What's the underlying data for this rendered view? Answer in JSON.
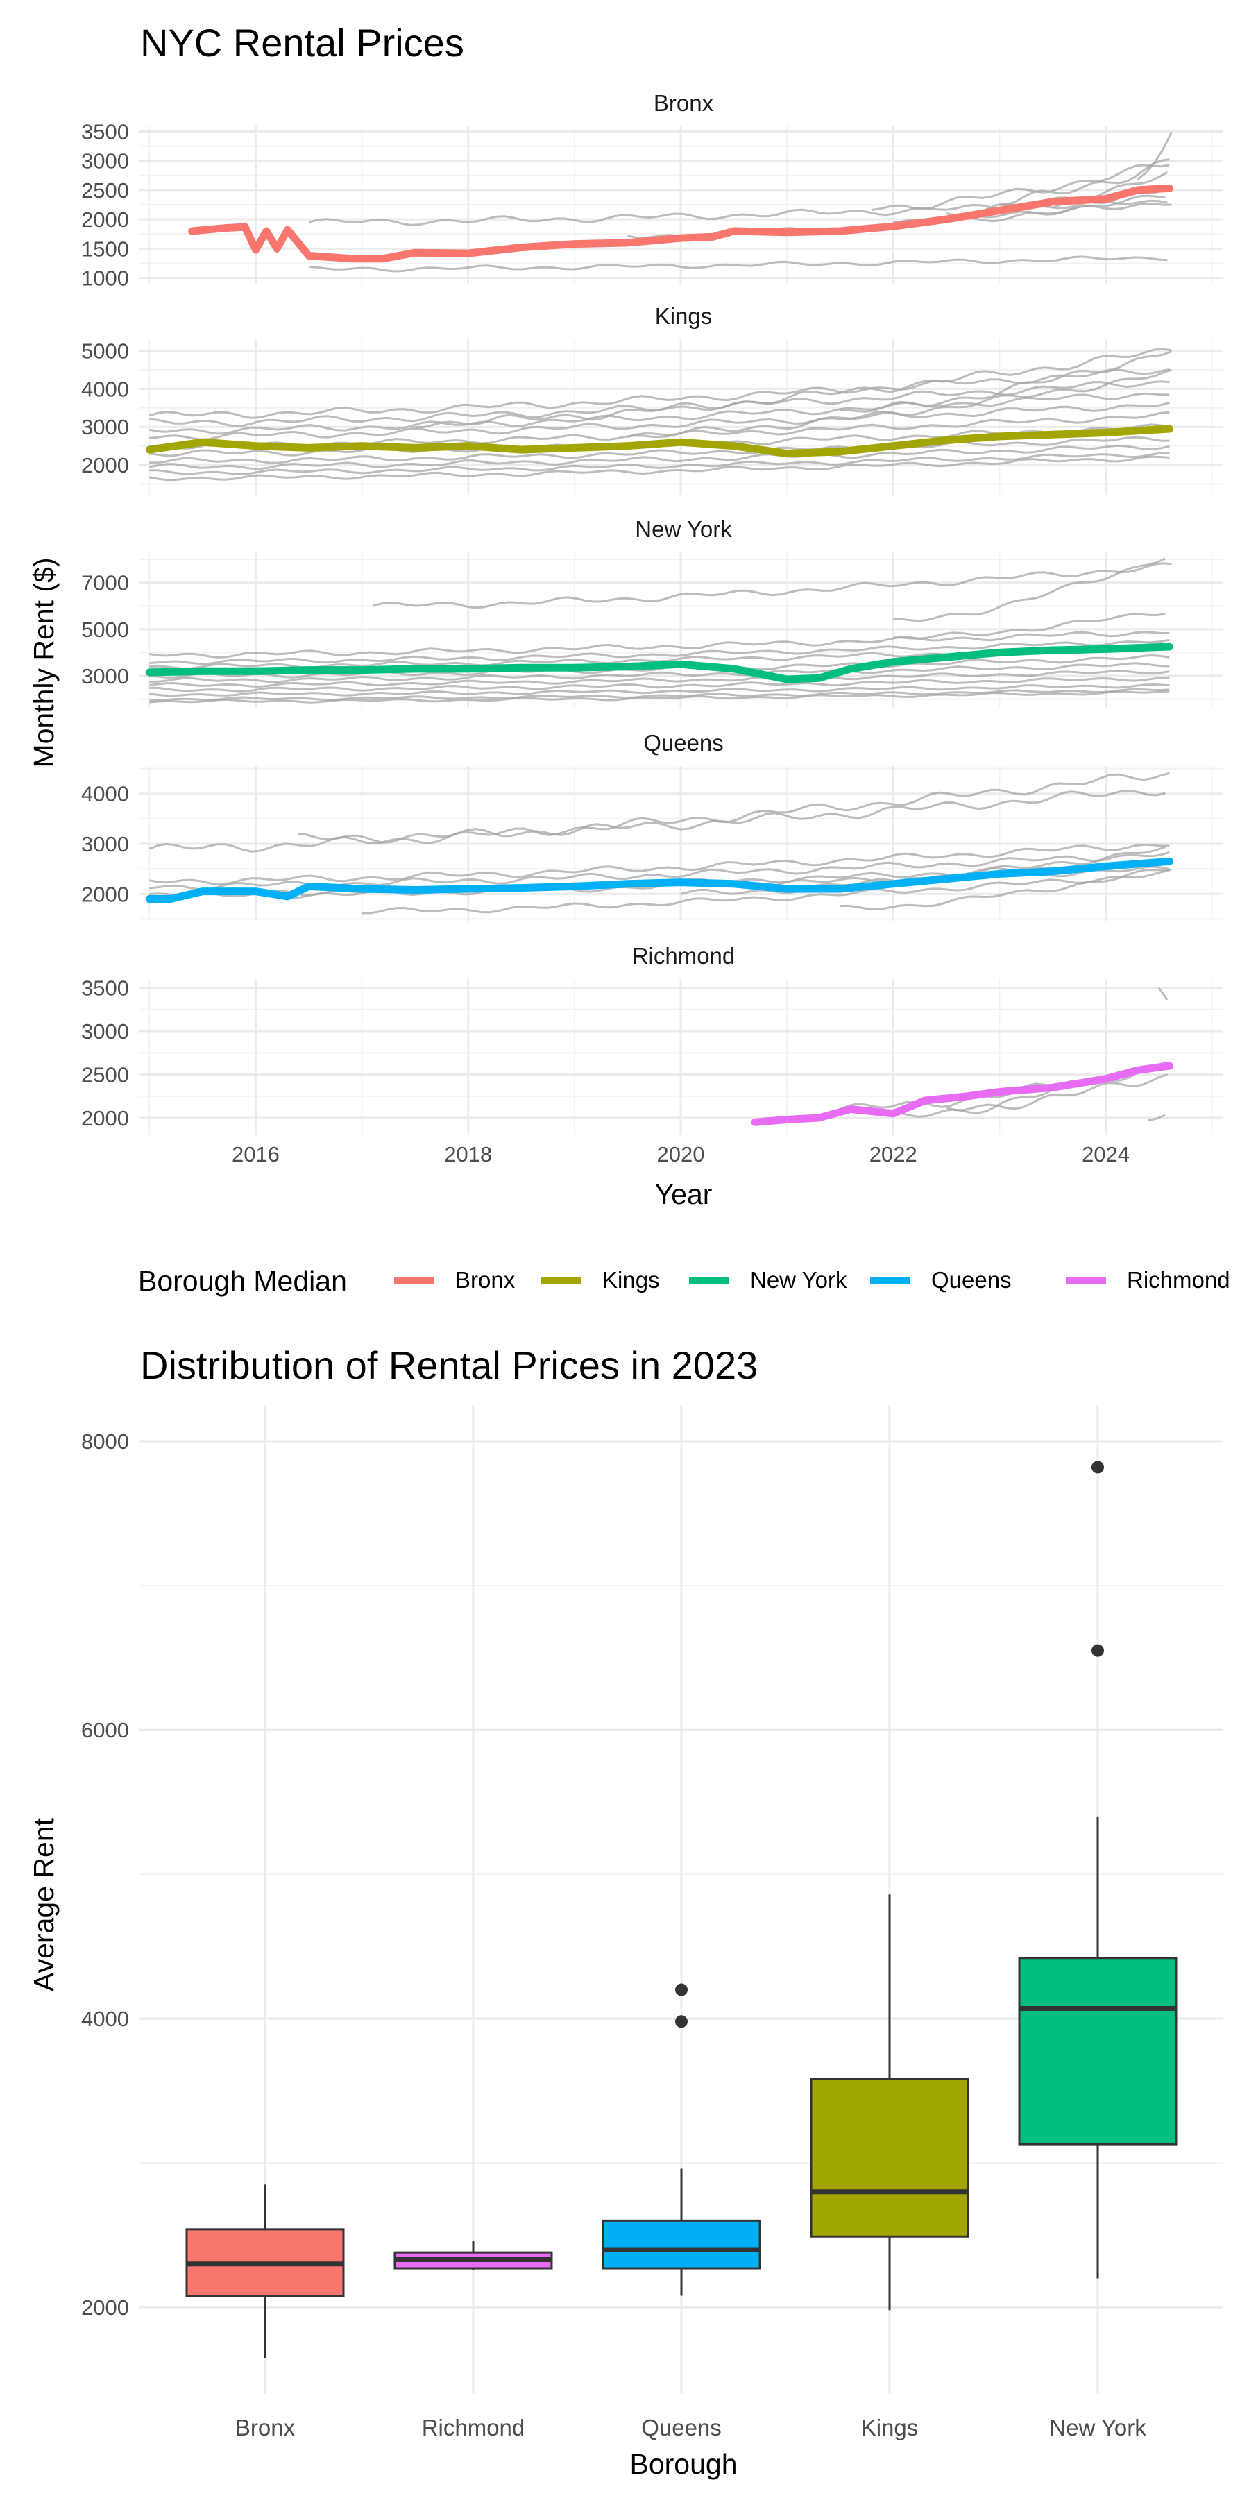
{
  "top_chart": {
    "title": "NYC Rental Prices",
    "xlabel": "Year",
    "ylabel": "Monthly Rent ($)",
    "x_ticks": [
      "2016",
      "2018",
      "2020",
      "2022",
      "2024"
    ],
    "legend": {
      "title": "Borough Median",
      "entries": [
        {
          "label": "Bronx",
          "color": "#F8766D"
        },
        {
          "label": "Kings",
          "color": "#A3A500"
        },
        {
          "label": "New York",
          "color": "#00BF7D"
        },
        {
          "label": "Queens",
          "color": "#00B0F6"
        },
        {
          "label": "Richmond",
          "color": "#E76BF3"
        }
      ]
    }
  },
  "bottom_chart": {
    "title": "Distribution of Rental Prices in 2023",
    "xlabel": "Borough",
    "ylabel": "Average Rent",
    "y_ticks": [
      "2000",
      "4000",
      "6000",
      "8000"
    ]
  },
  "chart_data": [
    {
      "type": "line",
      "title": "NYC Rental Prices",
      "xlabel": "Year",
      "ylabel": "Monthly Rent ($)",
      "xlim": [
        2014.9,
        2025.1
      ],
      "facets": [
        {
          "name": "Bronx",
          "color": "#F8766D",
          "ylim": [
            900,
            3600
          ],
          "y_ticks": [
            1000,
            1500,
            2000,
            2500,
            3000,
            3500
          ],
          "median": [
            [
              2015.4,
              1800
            ],
            [
              2015.7,
              1850
            ],
            [
              2015.9,
              1870
            ],
            [
              2016.0,
              1480
            ],
            [
              2016.1,
              1800
            ],
            [
              2016.2,
              1500
            ],
            [
              2016.3,
              1820
            ],
            [
              2016.5,
              1380
            ],
            [
              2016.9,
              1330
            ],
            [
              2017.2,
              1330
            ],
            [
              2017.5,
              1430
            ],
            [
              2018.0,
              1420
            ],
            [
              2018.5,
              1520
            ],
            [
              2019.0,
              1580
            ],
            [
              2019.5,
              1600
            ],
            [
              2020.0,
              1680
            ],
            [
              2020.3,
              1700
            ],
            [
              2020.5,
              1800
            ],
            [
              2021.0,
              1780
            ],
            [
              2021.5,
              1800
            ],
            [
              2022.0,
              1880
            ],
            [
              2022.5,
              2000
            ],
            [
              2023.0,
              2150
            ],
            [
              2023.5,
              2300
            ],
            [
              2024.0,
              2350
            ],
            [
              2024.3,
              2500
            ],
            [
              2024.6,
              2530
            ]
          ],
          "others": [
            {
              "start": 2016.5,
              "base": 1950,
              "end": 2300,
              "noise": 60
            },
            {
              "start": 2016.5,
              "base": 1150,
              "end": 1350,
              "noise": 40
            },
            {
              "start": 2019.5,
              "base": 1700,
              "end": 2300,
              "noise": 60
            },
            {
              "start": 2021.8,
              "base": 2200,
              "end": 2950,
              "noise": 80
            },
            {
              "start": 2022.0,
              "base": 1950,
              "end": 2400,
              "noise": 60
            },
            {
              "start": 2022.5,
              "base": 2100,
              "end": 2750,
              "noise": 80
            },
            {
              "start": 2023.0,
              "base": 2300,
              "end": 3000,
              "noise": 100
            },
            {
              "start": 2023.5,
              "base": 2200,
              "end": 2600,
              "noise": 80
            },
            {
              "start": 2024.3,
              "base": 2600,
              "end": 3450,
              "noise": 80
            }
          ]
        },
        {
          "name": "Kings",
          "color": "#A3A500",
          "ylim": [
            1200,
            5300
          ],
          "y_ticks": [
            2000,
            3000,
            4000,
            5000
          ],
          "median": [
            [
              2015.0,
              2400
            ],
            [
              2015.5,
              2600
            ],
            [
              2016.0,
              2500
            ],
            [
              2016.5,
              2450
            ],
            [
              2017.0,
              2500
            ],
            [
              2017.5,
              2450
            ],
            [
              2018.0,
              2500
            ],
            [
              2018.5,
              2400
            ],
            [
              2019.0,
              2450
            ],
            [
              2019.5,
              2500
            ],
            [
              2020.0,
              2600
            ],
            [
              2020.5,
              2500
            ],
            [
              2021.0,
              2300
            ],
            [
              2021.5,
              2350
            ],
            [
              2022.0,
              2500
            ],
            [
              2022.5,
              2650
            ],
            [
              2023.0,
              2750
            ],
            [
              2023.5,
              2800
            ],
            [
              2024.0,
              2850
            ],
            [
              2024.6,
              2950
            ]
          ],
          "others": [
            {
              "start": 2015.0,
              "base": 3300,
              "end": 4500,
              "noise": 100
            },
            {
              "start": 2015.0,
              "base": 3100,
              "end": 4200,
              "noise": 100
            },
            {
              "start": 2015.0,
              "base": 2900,
              "end": 3900,
              "noise": 90
            },
            {
              "start": 2015.0,
              "base": 2750,
              "end": 3600,
              "noise": 90
            },
            {
              "start": 2015.0,
              "base": 2500,
              "end": 3300,
              "noise": 80
            },
            {
              "start": 2015.0,
              "base": 2300,
              "end": 3000,
              "noise": 80
            },
            {
              "start": 2015.0,
              "base": 2100,
              "end": 2700,
              "noise": 70
            },
            {
              "start": 2015.0,
              "base": 1950,
              "end": 2500,
              "noise": 70
            },
            {
              "start": 2015.0,
              "base": 1800,
              "end": 2300,
              "noise": 60
            },
            {
              "start": 2015.0,
              "base": 1650,
              "end": 2200,
              "noise": 60
            },
            {
              "start": 2017.5,
              "base": 3100,
              "end": 5000,
              "noise": 120
            },
            {
              "start": 2019.5,
              "base": 2800,
              "end": 4400,
              "noise": 100
            },
            {
              "start": 2021.5,
              "base": 3400,
              "end": 5000,
              "noise": 120
            }
          ]
        },
        {
          "name": "New York",
          "color": "#00BF7D",
          "ylim": [
            1600,
            8300
          ],
          "y_ticks": [
            3000,
            5000,
            7000
          ],
          "median": [
            [
              2015.0,
              3150
            ],
            [
              2015.5,
              3200
            ],
            [
              2016.0,
              3200
            ],
            [
              2016.5,
              3250
            ],
            [
              2017.0,
              3250
            ],
            [
              2017.5,
              3300
            ],
            [
              2018.0,
              3300
            ],
            [
              2018.5,
              3350
            ],
            [
              2019.0,
              3350
            ],
            [
              2019.5,
              3400
            ],
            [
              2020.0,
              3500
            ],
            [
              2020.5,
              3300
            ],
            [
              2021.0,
              2850
            ],
            [
              2021.3,
              2900
            ],
            [
              2021.6,
              3300
            ],
            [
              2022.0,
              3600
            ],
            [
              2022.5,
              3800
            ],
            [
              2023.0,
              4000
            ],
            [
              2023.5,
              4100
            ],
            [
              2024.0,
              4150
            ],
            [
              2024.6,
              4250
            ]
          ],
          "others": [
            {
              "start": 2017.1,
              "base": 6000,
              "end": 7700,
              "noise": 150
            },
            {
              "start": 2022.0,
              "base": 5300,
              "end": 8200,
              "noise": 150
            },
            {
              "start": 2015.0,
              "base": 3900,
              "end": 4900,
              "noise": 120
            },
            {
              "start": 2015.0,
              "base": 3600,
              "end": 4500,
              "noise": 100
            },
            {
              "start": 2015.0,
              "base": 3400,
              "end": 4200,
              "noise": 100
            },
            {
              "start": 2015.0,
              "base": 3000,
              "end": 3800,
              "noise": 100
            },
            {
              "start": 2015.0,
              "base": 2800,
              "end": 3500,
              "noise": 90
            },
            {
              "start": 2015.0,
              "base": 2600,
              "end": 3200,
              "noise": 80
            },
            {
              "start": 2015.0,
              "base": 2400,
              "end": 2900,
              "noise": 80
            },
            {
              "start": 2015.0,
              "base": 2200,
              "end": 2600,
              "noise": 70
            },
            {
              "start": 2015.0,
              "base": 2000,
              "end": 2400,
              "noise": 60
            },
            {
              "start": 2015.0,
              "base": 1900,
              "end": 2300,
              "noise": 60
            },
            {
              "start": 2022.0,
              "base": 4600,
              "end": 5800,
              "noise": 120
            }
          ]
        },
        {
          "name": "Queens",
          "color": "#00B0F6",
          "ylim": [
            1450,
            4550
          ],
          "y_ticks": [
            2000,
            3000,
            4000
          ],
          "median": [
            [
              2015.0,
              1900
            ],
            [
              2015.2,
              1900
            ],
            [
              2015.5,
              2050
            ],
            [
              2016.0,
              2050
            ],
            [
              2016.3,
              1950
            ],
            [
              2016.5,
              2150
            ],
            [
              2017.0,
              2100
            ],
            [
              2017.5,
              2080
            ],
            [
              2018.0,
              2100
            ],
            [
              2018.5,
              2120
            ],
            [
              2019.0,
              2150
            ],
            [
              2019.5,
              2200
            ],
            [
              2020.0,
              2230
            ],
            [
              2020.5,
              2200
            ],
            [
              2021.0,
              2100
            ],
            [
              2021.5,
              2100
            ],
            [
              2022.0,
              2200
            ],
            [
              2022.5,
              2300
            ],
            [
              2023.0,
              2400
            ],
            [
              2023.5,
              2450
            ],
            [
              2024.0,
              2550
            ],
            [
              2024.6,
              2650
            ]
          ],
          "others": [
            {
              "start": 2015.0,
              "base": 2900,
              "end": 4400,
              "noise": 100
            },
            {
              "start": 2016.4,
              "base": 3100,
              "end": 4100,
              "noise": 100
            },
            {
              "start": 2015.0,
              "base": 2250,
              "end": 3000,
              "noise": 70
            },
            {
              "start": 2015.0,
              "base": 2150,
              "end": 2800,
              "noise": 70
            },
            {
              "start": 2015.0,
              "base": 2000,
              "end": 2600,
              "noise": 60
            },
            {
              "start": 2015.0,
              "base": 1950,
              "end": 2500,
              "noise": 60
            },
            {
              "start": 2017.0,
              "base": 1650,
              "end": 2400,
              "noise": 60
            },
            {
              "start": 2020.0,
              "base": 2000,
              "end": 2900,
              "noise": 70
            },
            {
              "start": 2021.5,
              "base": 1700,
              "end": 2500,
              "noise": 60
            }
          ]
        },
        {
          "name": "Richmond",
          "color": "#E76BF3",
          "ylim": [
            1800,
            3600
          ],
          "y_ticks": [
            2000,
            2500,
            3000,
            3500
          ],
          "median": [
            [
              2020.7,
              1950
            ],
            [
              2021.0,
              1980
            ],
            [
              2021.3,
              2000
            ],
            [
              2021.6,
              2100
            ],
            [
              2022.0,
              2050
            ],
            [
              2022.3,
              2200
            ],
            [
              2022.7,
              2250
            ],
            [
              2023.0,
              2300
            ],
            [
              2023.5,
              2350
            ],
            [
              2024.0,
              2450
            ],
            [
              2024.3,
              2550
            ],
            [
              2024.6,
              2600
            ]
          ],
          "others": [
            {
              "start": 2021.5,
              "base": 2100,
              "end": 2600,
              "noise": 60
            },
            {
              "start": 2022.0,
              "base": 2000,
              "end": 2700,
              "noise": 60
            },
            {
              "start": 2022.5,
              "base": 2100,
              "end": 2500,
              "noise": 60
            },
            {
              "start": 2024.4,
              "base": 1980,
              "end": 2050,
              "noise": 20
            },
            {
              "start": 2024.5,
              "base": 3500,
              "end": 3300,
              "noise": 30
            }
          ]
        }
      ]
    },
    {
      "type": "boxplot",
      "title": "Distribution of Rental Prices in 2023",
      "xlabel": "Borough",
      "ylabel": "Average Rent",
      "ylim": [
        1400,
        8250
      ],
      "categories": [
        "Bronx",
        "Richmond",
        "Queens",
        "Kings",
        "New York"
      ],
      "boxes": [
        {
          "name": "Bronx",
          "color": "#F8766D",
          "min": 1650,
          "q1": 2080,
          "median": 2300,
          "q3": 2540,
          "max": 2850,
          "outliers": []
        },
        {
          "name": "Richmond",
          "color": "#E76BF3",
          "min": 2260,
          "q1": 2270,
          "median": 2330,
          "q3": 2380,
          "max": 2460,
          "outliers": []
        },
        {
          "name": "Queens",
          "color": "#00B0F6",
          "min": 2080,
          "q1": 2270,
          "median": 2400,
          "q3": 2600,
          "max": 2960,
          "outliers": [
            3980,
            4200
          ]
        },
        {
          "name": "Kings",
          "color": "#A3A500",
          "min": 1980,
          "q1": 2490,
          "median": 2800,
          "q3": 3580,
          "max": 4860,
          "outliers": []
        },
        {
          "name": "New York",
          "color": "#00BF7D",
          "min": 2200,
          "q1": 3130,
          "median": 4070,
          "q3": 4420,
          "max": 5400,
          "outliers": [
            6550,
            7820
          ]
        }
      ]
    }
  ]
}
